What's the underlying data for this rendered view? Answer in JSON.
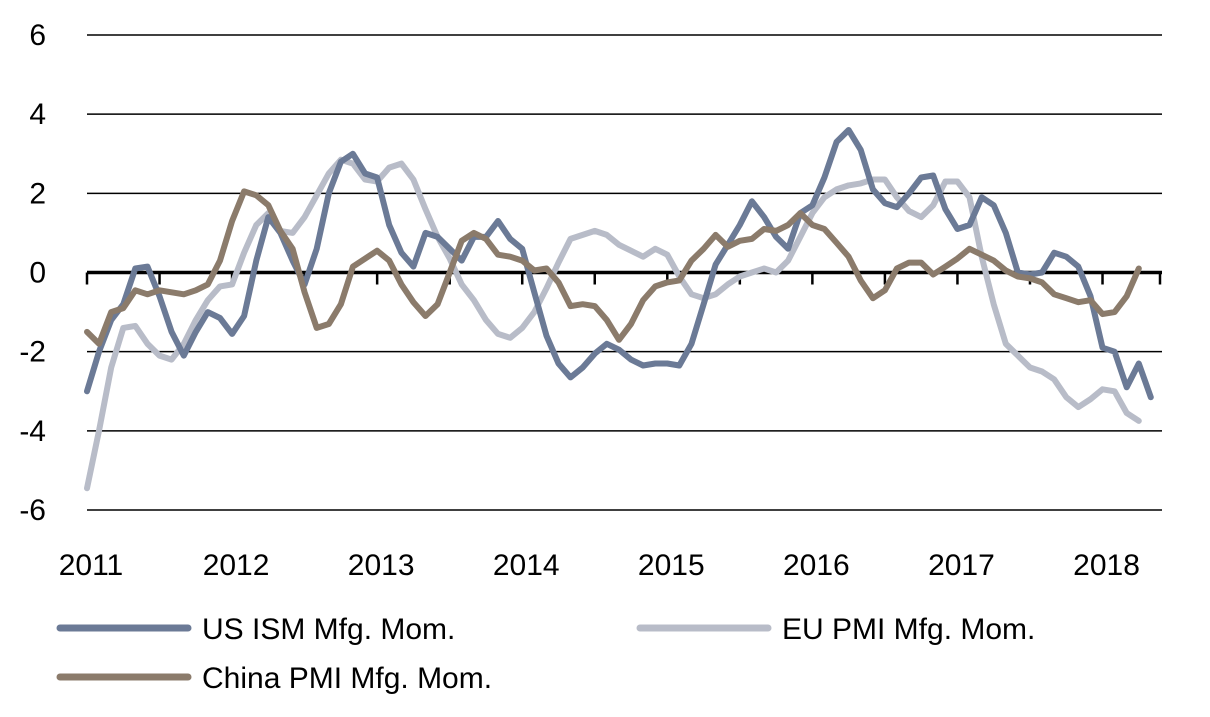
{
  "chart_data": {
    "type": "line",
    "title": "",
    "xlabel": "",
    "ylabel": "",
    "ylim": [
      -6,
      6
    ],
    "xlim": [
      2011,
      2018.45
    ],
    "y_ticks": [
      "6",
      "4",
      "2",
      "0",
      "-2",
      "-4",
      "-6"
    ],
    "x_ticks": [
      "2011",
      "2012",
      "2013",
      "2014",
      "2015",
      "2016",
      "2017",
      "2018"
    ],
    "grid": "horizontal",
    "legend_position": "bottom",
    "series": [
      {
        "name": "US ISM Mfg. Mom.",
        "color": "#6b7a96",
        "points": [
          [
            2011.0,
            -3.0
          ],
          [
            2011.083,
            -2.0
          ],
          [
            2011.167,
            -1.2
          ],
          [
            2011.25,
            -0.8
          ],
          [
            2011.333,
            0.1
          ],
          [
            2011.417,
            0.15
          ],
          [
            2011.5,
            -0.6
          ],
          [
            2011.583,
            -1.5
          ],
          [
            2011.667,
            -2.1
          ],
          [
            2011.75,
            -1.5
          ],
          [
            2011.833,
            -1.0
          ],
          [
            2011.917,
            -1.15
          ],
          [
            2012.0,
            -1.55
          ],
          [
            2012.083,
            -1.1
          ],
          [
            2012.167,
            0.3
          ],
          [
            2012.25,
            1.4
          ],
          [
            2012.333,
            1.0
          ],
          [
            2012.417,
            0.3
          ],
          [
            2012.5,
            -0.3
          ],
          [
            2012.583,
            0.6
          ],
          [
            2012.667,
            2.0
          ],
          [
            2012.75,
            2.8
          ],
          [
            2012.833,
            3.0
          ],
          [
            2012.917,
            2.5
          ],
          [
            2013.0,
            2.4
          ],
          [
            2013.083,
            1.2
          ],
          [
            2013.167,
            0.5
          ],
          [
            2013.25,
            0.15
          ],
          [
            2013.333,
            1.0
          ],
          [
            2013.417,
            0.9
          ],
          [
            2013.5,
            0.6
          ],
          [
            2013.583,
            0.3
          ],
          [
            2013.667,
            0.9
          ],
          [
            2013.75,
            0.9
          ],
          [
            2013.833,
            1.3
          ],
          [
            2013.917,
            0.85
          ],
          [
            2014.0,
            0.6
          ],
          [
            2014.083,
            -0.5
          ],
          [
            2014.167,
            -1.6
          ],
          [
            2014.25,
            -2.3
          ],
          [
            2014.333,
            -2.65
          ],
          [
            2014.417,
            -2.4
          ],
          [
            2014.5,
            -2.05
          ],
          [
            2014.583,
            -1.8
          ],
          [
            2014.667,
            -1.95
          ],
          [
            2014.75,
            -2.2
          ],
          [
            2014.833,
            -2.35
          ],
          [
            2014.917,
            -2.3
          ],
          [
            2015.0,
            -2.3
          ],
          [
            2015.083,
            -2.35
          ],
          [
            2015.167,
            -1.8
          ],
          [
            2015.25,
            -0.8
          ],
          [
            2015.333,
            0.2
          ],
          [
            2015.417,
            0.7
          ],
          [
            2015.5,
            1.2
          ],
          [
            2015.583,
            1.8
          ],
          [
            2015.667,
            1.4
          ],
          [
            2015.75,
            0.9
          ],
          [
            2015.833,
            0.6
          ],
          [
            2015.917,
            1.5
          ],
          [
            2016.0,
            1.7
          ],
          [
            2016.083,
            2.4
          ],
          [
            2016.167,
            3.3
          ],
          [
            2016.25,
            3.6
          ],
          [
            2016.333,
            3.1
          ],
          [
            2016.417,
            2.1
          ],
          [
            2016.5,
            1.75
          ],
          [
            2016.583,
            1.65
          ],
          [
            2016.667,
            2.0
          ],
          [
            2016.75,
            2.4
          ],
          [
            2016.833,
            2.45
          ],
          [
            2016.917,
            1.6
          ],
          [
            2017.0,
            1.1
          ],
          [
            2017.083,
            1.2
          ],
          [
            2017.167,
            1.9
          ],
          [
            2017.25,
            1.7
          ],
          [
            2017.333,
            1.0
          ],
          [
            2017.417,
            0.0
          ],
          [
            2017.5,
            -0.05
          ],
          [
            2017.583,
            0.0
          ],
          [
            2017.667,
            0.5
          ],
          [
            2017.75,
            0.4
          ],
          [
            2017.833,
            0.15
          ],
          [
            2017.917,
            -0.6
          ],
          [
            2018.0,
            -1.9
          ],
          [
            2018.083,
            -2.0
          ],
          [
            2018.167,
            -2.9
          ],
          [
            2018.25,
            -2.3
          ],
          [
            2018.333,
            -3.15
          ]
        ]
      },
      {
        "name": "EU PMI Mfg. Mom.",
        "color": "#b8bcc8",
        "points": [
          [
            2011.0,
            -5.45
          ],
          [
            2011.083,
            -4.0
          ],
          [
            2011.167,
            -2.4
          ],
          [
            2011.25,
            -1.4
          ],
          [
            2011.333,
            -1.35
          ],
          [
            2011.417,
            -1.8
          ],
          [
            2011.5,
            -2.1
          ],
          [
            2011.583,
            -2.2
          ],
          [
            2011.667,
            -1.8
          ],
          [
            2011.75,
            -1.2
          ],
          [
            2011.833,
            -0.7
          ],
          [
            2011.917,
            -0.35
          ],
          [
            2012.0,
            -0.3
          ],
          [
            2012.083,
            0.5
          ],
          [
            2012.167,
            1.2
          ],
          [
            2012.25,
            1.5
          ],
          [
            2012.333,
            1.05
          ],
          [
            2012.417,
            1.0
          ],
          [
            2012.5,
            1.4
          ],
          [
            2012.583,
            1.95
          ],
          [
            2012.667,
            2.5
          ],
          [
            2012.75,
            2.85
          ],
          [
            2012.833,
            2.75
          ],
          [
            2012.917,
            2.35
          ],
          [
            2013.0,
            2.3
          ],
          [
            2013.083,
            2.65
          ],
          [
            2013.167,
            2.75
          ],
          [
            2013.25,
            2.35
          ],
          [
            2013.333,
            1.6
          ],
          [
            2013.417,
            0.9
          ],
          [
            2013.5,
            0.35
          ],
          [
            2013.583,
            -0.3
          ],
          [
            2013.667,
            -0.7
          ],
          [
            2013.75,
            -1.2
          ],
          [
            2013.833,
            -1.55
          ],
          [
            2013.917,
            -1.65
          ],
          [
            2014.0,
            -1.4
          ],
          [
            2014.083,
            -1.0
          ],
          [
            2014.167,
            -0.4
          ],
          [
            2014.25,
            0.25
          ],
          [
            2014.333,
            0.85
          ],
          [
            2014.417,
            0.95
          ],
          [
            2014.5,
            1.05
          ],
          [
            2014.583,
            0.95
          ],
          [
            2014.667,
            0.7
          ],
          [
            2014.75,
            0.55
          ],
          [
            2014.833,
            0.4
          ],
          [
            2014.917,
            0.6
          ],
          [
            2015.0,
            0.45
          ],
          [
            2015.083,
            -0.1
          ],
          [
            2015.167,
            -0.55
          ],
          [
            2015.25,
            -0.65
          ],
          [
            2015.333,
            -0.55
          ],
          [
            2015.417,
            -0.3
          ],
          [
            2015.5,
            -0.1
          ],
          [
            2015.583,
            0.0
          ],
          [
            2015.667,
            0.1
          ],
          [
            2015.75,
            0.0
          ],
          [
            2015.833,
            0.3
          ],
          [
            2015.917,
            0.9
          ],
          [
            2016.0,
            1.5
          ],
          [
            2016.083,
            1.9
          ],
          [
            2016.167,
            2.1
          ],
          [
            2016.25,
            2.2
          ],
          [
            2016.333,
            2.25
          ],
          [
            2016.417,
            2.35
          ],
          [
            2016.5,
            2.35
          ],
          [
            2016.583,
            1.9
          ],
          [
            2016.667,
            1.55
          ],
          [
            2016.75,
            1.4
          ],
          [
            2016.833,
            1.7
          ],
          [
            2016.917,
            2.3
          ],
          [
            2017.0,
            2.3
          ],
          [
            2017.083,
            1.9
          ],
          [
            2017.167,
            0.4
          ],
          [
            2017.25,
            -0.8
          ],
          [
            2017.333,
            -1.8
          ],
          [
            2017.417,
            -2.1
          ],
          [
            2017.5,
            -2.4
          ],
          [
            2017.583,
            -2.5
          ],
          [
            2017.667,
            -2.7
          ],
          [
            2017.75,
            -3.15
          ],
          [
            2017.833,
            -3.4
          ],
          [
            2017.917,
            -3.2
          ],
          [
            2018.0,
            -2.95
          ],
          [
            2018.083,
            -3.0
          ],
          [
            2018.167,
            -3.55
          ],
          [
            2018.25,
            -3.75
          ]
        ]
      },
      {
        "name": "China PMI Mfg. Mom.",
        "color": "#8b7b6b",
        "points": [
          [
            2011.0,
            -1.5
          ],
          [
            2011.083,
            -1.8
          ],
          [
            2011.167,
            -1.0
          ],
          [
            2011.25,
            -0.9
          ],
          [
            2011.333,
            -0.45
          ],
          [
            2011.417,
            -0.55
          ],
          [
            2011.5,
            -0.45
          ],
          [
            2011.583,
            -0.5
          ],
          [
            2011.667,
            -0.55
          ],
          [
            2011.75,
            -0.45
          ],
          [
            2011.833,
            -0.3
          ],
          [
            2011.917,
            0.3
          ],
          [
            2012.0,
            1.3
          ],
          [
            2012.083,
            2.05
          ],
          [
            2012.167,
            1.95
          ],
          [
            2012.25,
            1.7
          ],
          [
            2012.333,
            1.05
          ],
          [
            2012.417,
            0.6
          ],
          [
            2012.5,
            -0.5
          ],
          [
            2012.583,
            -1.4
          ],
          [
            2012.667,
            -1.3
          ],
          [
            2012.75,
            -0.8
          ],
          [
            2012.833,
            0.15
          ],
          [
            2012.917,
            0.35
          ],
          [
            2013.0,
            0.55
          ],
          [
            2013.083,
            0.3
          ],
          [
            2013.167,
            -0.3
          ],
          [
            2013.25,
            -0.75
          ],
          [
            2013.333,
            -1.1
          ],
          [
            2013.417,
            -0.8
          ],
          [
            2013.5,
            0.0
          ],
          [
            2013.583,
            0.8
          ],
          [
            2013.667,
            1.0
          ],
          [
            2013.75,
            0.85
          ],
          [
            2013.833,
            0.45
          ],
          [
            2013.917,
            0.4
          ],
          [
            2014.0,
            0.3
          ],
          [
            2014.083,
            0.05
          ],
          [
            2014.167,
            0.1
          ],
          [
            2014.25,
            -0.25
          ],
          [
            2014.333,
            -0.85
          ],
          [
            2014.417,
            -0.8
          ],
          [
            2014.5,
            -0.85
          ],
          [
            2014.583,
            -1.2
          ],
          [
            2014.667,
            -1.7
          ],
          [
            2014.75,
            -1.3
          ],
          [
            2014.833,
            -0.7
          ],
          [
            2014.917,
            -0.35
          ],
          [
            2015.0,
            -0.25
          ],
          [
            2015.083,
            -0.2
          ],
          [
            2015.167,
            0.3
          ],
          [
            2015.25,
            0.6
          ],
          [
            2015.333,
            0.95
          ],
          [
            2015.417,
            0.65
          ],
          [
            2015.5,
            0.8
          ],
          [
            2015.583,
            0.85
          ],
          [
            2015.667,
            1.1
          ],
          [
            2015.75,
            1.05
          ],
          [
            2015.833,
            1.2
          ],
          [
            2015.917,
            1.5
          ],
          [
            2016.0,
            1.2
          ],
          [
            2016.083,
            1.1
          ],
          [
            2016.167,
            0.75
          ],
          [
            2016.25,
            0.4
          ],
          [
            2016.333,
            -0.2
          ],
          [
            2016.417,
            -0.65
          ],
          [
            2016.5,
            -0.45
          ],
          [
            2016.583,
            0.1
          ],
          [
            2016.667,
            0.25
          ],
          [
            2016.75,
            0.25
          ],
          [
            2016.833,
            -0.05
          ],
          [
            2016.917,
            0.15
          ],
          [
            2017.0,
            0.35
          ],
          [
            2017.083,
            0.6
          ],
          [
            2017.167,
            0.45
          ],
          [
            2017.25,
            0.3
          ],
          [
            2017.333,
            0.05
          ],
          [
            2017.417,
            -0.1
          ],
          [
            2017.5,
            -0.15
          ],
          [
            2017.583,
            -0.25
          ],
          [
            2017.667,
            -0.55
          ],
          [
            2017.75,
            -0.65
          ],
          [
            2017.833,
            -0.75
          ],
          [
            2017.917,
            -0.7
          ],
          [
            2018.0,
            -1.05
          ],
          [
            2018.083,
            -1.0
          ],
          [
            2018.167,
            -0.6
          ],
          [
            2018.25,
            0.1
          ]
        ]
      }
    ]
  }
}
